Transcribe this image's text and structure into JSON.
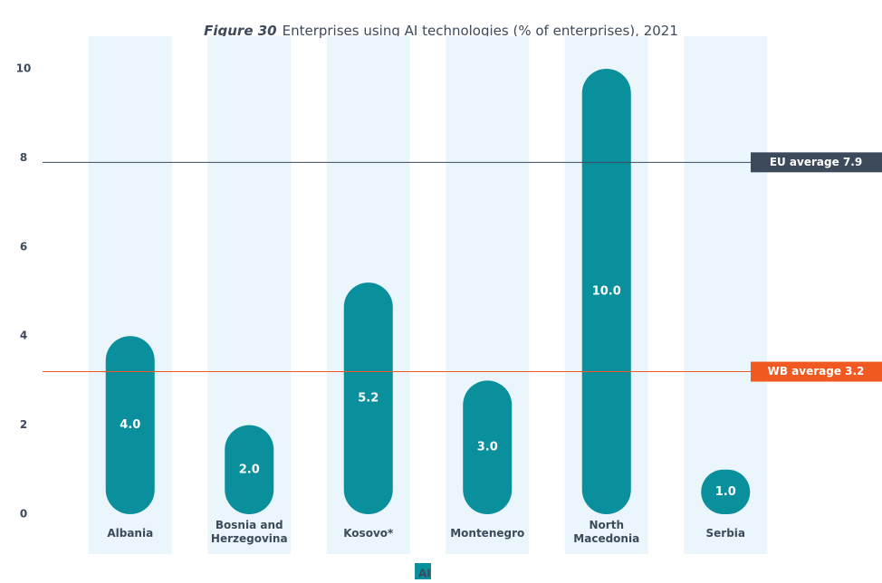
{
  "chart_data": {
    "type": "bar",
    "figure_label": "Figure 30",
    "title": "Enterprises using AI technologies (% of enterprises), 2021",
    "categories": [
      "Albania",
      "Bosnia and Herzegovina",
      "Kosovo*",
      "Montenegro",
      "North Macedonia",
      "Serbia"
    ],
    "series": [
      {
        "name": "AI",
        "color": "#0a8f9c",
        "values": [
          4.0,
          2.0,
          5.2,
          3.0,
          10.0,
          1.0
        ],
        "value_labels": [
          "4.0",
          "2.0",
          "5.2",
          "3.0",
          "10.0",
          "1.0"
        ]
      }
    ],
    "ylim": [
      0,
      10
    ],
    "yticks": [
      0,
      2,
      4,
      6,
      8,
      10
    ],
    "reference_lines": [
      {
        "label": "EU average 7.9",
        "value": 7.9,
        "color": "#3d4a5c"
      },
      {
        "label": "WB average 3.2",
        "value": 3.2,
        "color": "#f05a22"
      }
    ],
    "legend": "bottom"
  }
}
